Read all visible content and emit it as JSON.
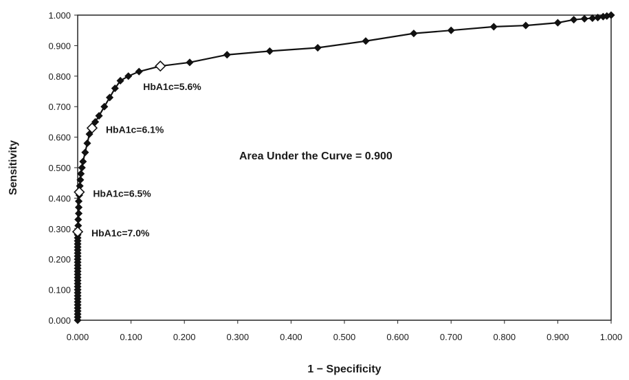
{
  "chart_data": {
    "type": "line",
    "title": "",
    "xlabel": "1 − Specificity",
    "ylabel": "Sensitivity",
    "xlim": [
      0,
      1
    ],
    "ylim": [
      0,
      1
    ],
    "x_ticks": [
      "0.000",
      "0.100",
      "0.200",
      "0.300",
      "0.400",
      "0.500",
      "0.600",
      "0.700",
      "0.800",
      "0.900",
      "1.000"
    ],
    "y_ticks": [
      "0.000",
      "0.100",
      "0.200",
      "0.300",
      "0.400",
      "0.500",
      "0.600",
      "0.700",
      "0.800",
      "0.900",
      "1.000"
    ],
    "grid": false,
    "series": [
      {
        "points": [
          [
            0.0,
            0.0
          ],
          [
            0.0,
            0.01
          ],
          [
            0.0,
            0.02
          ],
          [
            0.0,
            0.03
          ],
          [
            0.0,
            0.04
          ],
          [
            0.0,
            0.05
          ],
          [
            0.0,
            0.06
          ],
          [
            0.0,
            0.07
          ],
          [
            0.0,
            0.08
          ],
          [
            0.0,
            0.09
          ],
          [
            0.0,
            0.1
          ],
          [
            0.0,
            0.11
          ],
          [
            0.0,
            0.12
          ],
          [
            0.0,
            0.13
          ],
          [
            0.0,
            0.14
          ],
          [
            0.0,
            0.15
          ],
          [
            0.0,
            0.16
          ],
          [
            0.0,
            0.17
          ],
          [
            0.0,
            0.18
          ],
          [
            0.0,
            0.19
          ],
          [
            0.0,
            0.2
          ],
          [
            0.0,
            0.21
          ],
          [
            0.0,
            0.22
          ],
          [
            0.0,
            0.23
          ],
          [
            0.0,
            0.24
          ],
          [
            0.0,
            0.25
          ],
          [
            0.0,
            0.26
          ],
          [
            0.0,
            0.27
          ],
          [
            0.0,
            0.28
          ],
          [
            0.0,
            0.29
          ],
          [
            0.001,
            0.31
          ],
          [
            0.001,
            0.33
          ],
          [
            0.002,
            0.35
          ],
          [
            0.002,
            0.37
          ],
          [
            0.002,
            0.39
          ],
          [
            0.003,
            0.41
          ],
          [
            0.003,
            0.42
          ],
          [
            0.004,
            0.44
          ],
          [
            0.005,
            0.46
          ],
          [
            0.006,
            0.48
          ],
          [
            0.008,
            0.5
          ],
          [
            0.01,
            0.52
          ],
          [
            0.014,
            0.55
          ],
          [
            0.018,
            0.58
          ],
          [
            0.022,
            0.61
          ],
          [
            0.027,
            0.63
          ],
          [
            0.033,
            0.65
          ],
          [
            0.04,
            0.67
          ],
          [
            0.05,
            0.7
          ],
          [
            0.06,
            0.73
          ],
          [
            0.07,
            0.76
          ],
          [
            0.08,
            0.785
          ],
          [
            0.095,
            0.8
          ],
          [
            0.115,
            0.815
          ],
          [
            0.155,
            0.833
          ],
          [
            0.21,
            0.845
          ],
          [
            0.28,
            0.87
          ],
          [
            0.36,
            0.882
          ],
          [
            0.45,
            0.893
          ],
          [
            0.54,
            0.915
          ],
          [
            0.63,
            0.94
          ],
          [
            0.7,
            0.95
          ],
          [
            0.78,
            0.962
          ],
          [
            0.84,
            0.966
          ],
          [
            0.9,
            0.975
          ],
          [
            0.93,
            0.985
          ],
          [
            0.95,
            0.988
          ],
          [
            0.965,
            0.99
          ],
          [
            0.975,
            0.992
          ],
          [
            0.985,
            0.995
          ],
          [
            0.992,
            0.997
          ],
          [
            1.0,
            1.0
          ]
        ]
      }
    ],
    "open_markers": [
      {
        "x": 0.155,
        "y": 0.833,
        "label": "HbA1c=5.6%"
      },
      {
        "x": 0.027,
        "y": 0.63,
        "label": "HbA1c=6.1%"
      },
      {
        "x": 0.003,
        "y": 0.42,
        "label": "HbA1c=6.5%"
      },
      {
        "x": 0.0,
        "y": 0.29,
        "label": "HbA1c=7.0%"
      }
    ],
    "annotation_text": "Area Under the Curve = 0.900"
  }
}
